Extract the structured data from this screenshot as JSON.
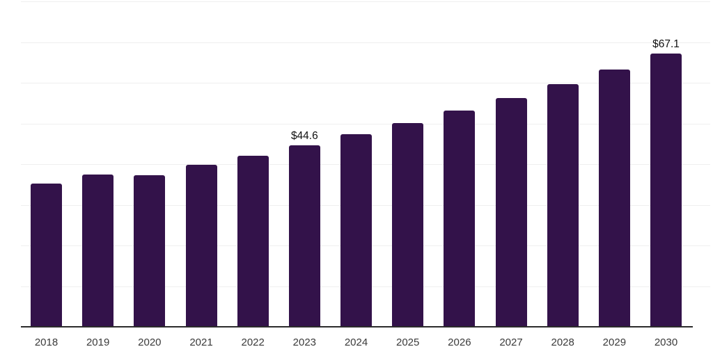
{
  "chart_data": {
    "type": "bar",
    "title": "",
    "xlabel": "",
    "ylabel": "",
    "categories": [
      "2018",
      "2019",
      "2020",
      "2021",
      "2022",
      "2023",
      "2024",
      "2025",
      "2026",
      "2027",
      "2028",
      "2029",
      "2030"
    ],
    "values": [
      35.2,
      37.4,
      37.3,
      39.8,
      42.1,
      44.6,
      47.3,
      50.1,
      53.1,
      56.3,
      59.7,
      63.3,
      67.1
    ],
    "data_labels": [
      null,
      null,
      null,
      null,
      null,
      "$44.6",
      null,
      null,
      null,
      null,
      null,
      null,
      "$67.1"
    ],
    "ylim": [
      0,
      80
    ],
    "grid_step": 10,
    "grid": "horizontal",
    "y_tick_labels_visible": false,
    "legend": "none",
    "value_prefix": "$"
  },
  "colors": {
    "bar": "#33124a",
    "gridline": "#efefef",
    "axis_line": "#2b2b2b",
    "tick_label": "#3a3a3a",
    "data_label": "#111111",
    "background": "#ffffff"
  }
}
